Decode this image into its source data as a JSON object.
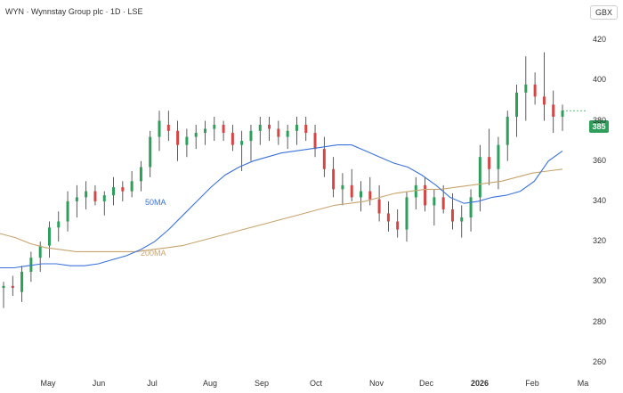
{
  "header": {
    "title": "WYN · Wynnstay Group plc · 1D · LSE",
    "currency": "GBX"
  },
  "price_label": "385",
  "colors": {
    "up": "#2e9e5b",
    "down": "#d64545",
    "ma50": "#3b73d9",
    "ma200": "#c8a46e",
    "grid": "#f2f2f2",
    "axis_text": "#333333"
  },
  "ma_labels": {
    "ma50": "50MA",
    "ma200": "200MA"
  },
  "chart_data": {
    "type": "candlestick",
    "title": "WYN · Wynnstay Group plc · 1D · LSE",
    "currency": "GBX",
    "x_tick_labels": [
      "May",
      "Jun",
      "Jul",
      "Aug",
      "Sep",
      "Oct",
      "Nov",
      "Dec",
      "2026",
      "Feb",
      "Ma"
    ],
    "y_ticks": [
      260,
      280,
      300,
      320,
      340,
      360,
      380,
      400,
      420
    ],
    "ylim": [
      255,
      432
    ],
    "grid": false,
    "last_price": 385,
    "series": [
      {
        "name": "50MA",
        "values": [
          307,
          307,
          308,
          309,
          309,
          308,
          308,
          309,
          311,
          313,
          316,
          320,
          326,
          333,
          340,
          347,
          353,
          357,
          360,
          362,
          364,
          365,
          366,
          367,
          368,
          368,
          365,
          362,
          359,
          357,
          353,
          348,
          342,
          339,
          340,
          342,
          343,
          345,
          350,
          360,
          365
        ]
      },
      {
        "name": "200MA",
        "values": [
          324,
          322,
          319,
          317,
          316,
          315,
          315,
          315,
          315,
          315,
          316,
          317,
          318,
          320,
          322,
          324,
          326,
          328,
          330,
          332,
          334,
          336,
          338,
          339,
          340,
          342,
          344,
          345,
          346,
          346,
          347,
          348,
          349,
          350,
          352,
          354,
          355,
          356
        ]
      }
    ],
    "candles": [
      [
        297,
        300,
        287,
        298
      ],
      [
        298,
        303,
        293,
        297
      ],
      [
        295,
        308,
        290,
        305
      ],
      [
        305,
        315,
        300,
        312
      ],
      [
        312,
        320,
        305,
        318
      ],
      [
        318,
        330,
        312,
        327
      ],
      [
        327,
        335,
        320,
        330
      ],
      [
        330,
        345,
        325,
        340
      ],
      [
        340,
        348,
        332,
        342
      ],
      [
        342,
        350,
        336,
        345
      ],
      [
        345,
        348,
        338,
        340
      ],
      [
        340,
        345,
        333,
        343
      ],
      [
        343,
        352,
        338,
        347
      ],
      [
        347,
        350,
        340,
        345
      ],
      [
        345,
        355,
        342,
        350
      ],
      [
        350,
        360,
        345,
        357
      ],
      [
        357,
        375,
        352,
        372
      ],
      [
        372,
        385,
        365,
        380
      ],
      [
        378,
        385,
        370,
        375
      ],
      [
        375,
        380,
        360,
        368
      ],
      [
        368,
        376,
        362,
        372
      ],
      [
        372,
        378,
        366,
        374
      ],
      [
        374,
        380,
        368,
        376
      ],
      [
        376,
        382,
        370,
        378
      ],
      [
        378,
        380,
        370,
        374
      ],
      [
        374,
        378,
        365,
        368
      ],
      [
        368,
        375,
        355,
        370
      ],
      [
        370,
        378,
        360,
        375
      ],
      [
        375,
        382,
        368,
        378
      ],
      [
        378,
        382,
        370,
        376
      ],
      [
        376,
        380,
        368,
        372
      ],
      [
        372,
        378,
        366,
        375
      ],
      [
        375,
        382,
        368,
        378
      ],
      [
        378,
        382,
        370,
        374
      ],
      [
        374,
        378,
        362,
        366
      ],
      [
        366,
        372,
        352,
        356
      ],
      [
        356,
        362,
        342,
        346
      ],
      [
        346,
        354,
        338,
        348
      ],
      [
        348,
        356,
        340,
        342
      ],
      [
        342,
        350,
        335,
        345
      ],
      [
        345,
        352,
        338,
        341
      ],
      [
        341,
        348,
        330,
        334
      ],
      [
        334,
        340,
        325,
        330
      ],
      [
        330,
        336,
        322,
        326
      ],
      [
        326,
        345,
        320,
        342
      ],
      [
        342,
        352,
        336,
        348
      ],
      [
        348,
        352,
        335,
        338
      ],
      [
        338,
        346,
        328,
        342
      ],
      [
        342,
        348,
        334,
        336
      ],
      [
        336,
        344,
        326,
        330
      ],
      [
        330,
        338,
        322,
        332
      ],
      [
        332,
        346,
        325,
        342
      ],
      [
        342,
        368,
        335,
        362
      ],
      [
        362,
        376,
        348,
        356
      ],
      [
        356,
        372,
        346,
        368
      ],
      [
        368,
        385,
        360,
        382
      ],
      [
        382,
        398,
        372,
        394
      ],
      [
        394,
        412,
        380,
        398
      ],
      [
        398,
        404,
        388,
        392
      ],
      [
        392,
        414,
        380,
        388
      ],
      [
        388,
        395,
        374,
        382
      ],
      [
        382,
        388,
        375,
        385
      ]
    ]
  }
}
